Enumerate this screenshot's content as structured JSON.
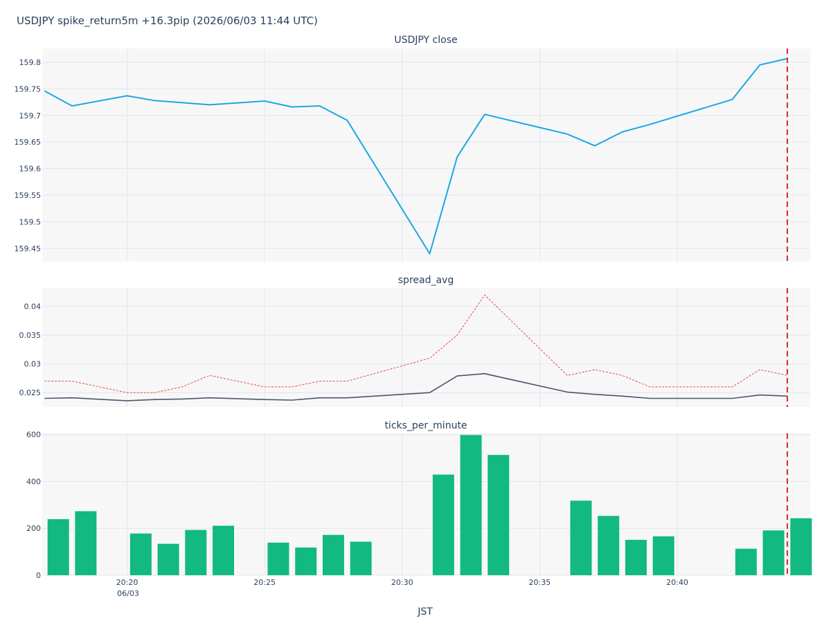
{
  "title": "USDJPY spike_return5m +16.3pip (2026/06/03 11:44 UTC)",
  "xlabel": "JST",
  "colors": {
    "close": "#1ca7e0",
    "spread_avg": "#475569",
    "spread_max": "#ef4444",
    "ticks": "#12b981",
    "marker": "#d62728",
    "plot_bg": "#f7f7f8",
    "grid": "#e3e6ea"
  },
  "chart_data": [
    {
      "type": "line",
      "title": "USDJPY close",
      "x": [
        "20:17",
        "20:18",
        "20:20",
        "20:21",
        "20:23",
        "20:25",
        "20:26",
        "20:27",
        "20:28",
        "20:31",
        "20:32",
        "20:33",
        "20:36",
        "20:37",
        "20:38",
        "20:39",
        "20:42",
        "20:43",
        "20:44"
      ],
      "series": [
        {
          "values": [
            159.746,
            159.718,
            159.737,
            159.728,
            159.72,
            159.727,
            159.716,
            159.718,
            159.691,
            159.44,
            159.622,
            159.702,
            159.665,
            159.643,
            159.669,
            159.683,
            159.73,
            159.795,
            159.807
          ]
        }
      ],
      "xlim": [
        "20:16:55",
        "20:44:50"
      ],
      "ylim": [
        159.425,
        159.826
      ],
      "yticks": [
        159.45,
        159.5,
        159.55,
        159.6,
        159.65,
        159.7,
        159.75,
        159.8
      ],
      "ytick_labels": [
        "159.45",
        "159.5",
        "159.55",
        "159.6",
        "159.65",
        "159.7",
        "159.75",
        "159.8"
      ],
      "marker_x": "20:44",
      "grid": true
    },
    {
      "type": "line",
      "title": "spread_avg",
      "x": [
        "20:17",
        "20:18",
        "20:20",
        "20:21",
        "20:22",
        "20:23",
        "20:25",
        "20:26",
        "20:27",
        "20:28",
        "20:31",
        "20:32",
        "20:33",
        "20:36",
        "20:37",
        "20:38",
        "20:39",
        "20:42",
        "20:43",
        "20:44"
      ],
      "series": [
        {
          "style": "solid",
          "values": [
            0.024,
            0.0241,
            0.0236,
            0.0238,
            0.0239,
            0.0241,
            0.0238,
            0.0237,
            0.0241,
            0.0241,
            0.025,
            0.0279,
            0.0283,
            0.0251,
            0.0247,
            0.0244,
            0.024,
            0.024,
            0.0246,
            0.0244
          ]
        },
        {
          "style": "dotted",
          "values": [
            0.027,
            0.027,
            0.025,
            0.025,
            0.026,
            0.028,
            0.026,
            0.026,
            0.027,
            0.027,
            0.031,
            0.035,
            0.042,
            0.028,
            0.029,
            0.028,
            0.026,
            0.026,
            0.029,
            0.028
          ]
        }
      ],
      "xlim": [
        "20:16:55",
        "20:44:50"
      ],
      "ylim": [
        0.0225,
        0.0432
      ],
      "yticks": [
        0.025,
        0.03,
        0.035,
        0.04
      ],
      "ytick_labels": [
        "0.025",
        "0.03",
        "0.035",
        "0.04"
      ],
      "marker_x": "20:44",
      "grid": true
    },
    {
      "type": "bar",
      "title": "ticks_per_minute",
      "x": [
        "20:17",
        "20:18",
        "20:20",
        "20:21",
        "20:22",
        "20:23",
        "20:25",
        "20:26",
        "20:27",
        "20:28",
        "20:31",
        "20:32",
        "20:33",
        "20:36",
        "20:37",
        "20:38",
        "20:39",
        "20:42",
        "20:43",
        "20:44"
      ],
      "values": [
        239,
        273,
        178,
        134,
        193,
        211,
        139,
        118,
        172,
        143,
        429,
        598,
        513,
        318,
        253,
        151,
        166,
        113,
        191,
        243
      ],
      "xlim": [
        "20:16:55",
        "20:44:50"
      ],
      "ylim": [
        0,
        605
      ],
      "yticks": [
        0,
        200,
        400,
        600
      ],
      "ytick_labels": [
        "0",
        "200",
        "400",
        "600"
      ],
      "xticks": [
        "20:20",
        "20:25",
        "20:30",
        "20:35",
        "20:40"
      ],
      "xtick_labels": [
        "20:20",
        "20:25",
        "20:30",
        "20:35",
        "20:40"
      ],
      "xtick_date": "06/03",
      "marker_x": "20:44",
      "grid": true
    }
  ]
}
